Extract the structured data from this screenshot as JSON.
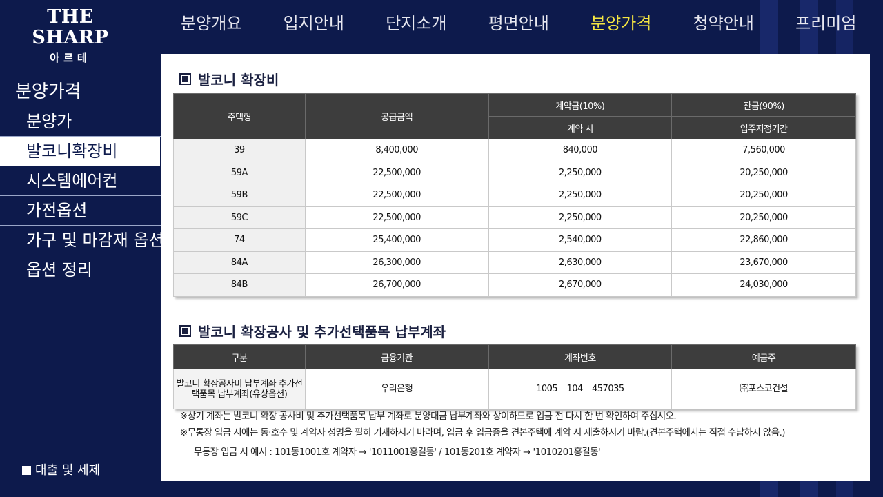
{
  "logo": {
    "main": "THE SHARP",
    "sub": "아르테"
  },
  "nav": [
    "분양개요",
    "입지안내",
    "단지소개",
    "평면안내",
    "분양가격",
    "청약안내",
    "프리미엄"
  ],
  "sidebar": {
    "title": "분양가격",
    "items": [
      "분양가",
      "발코니확장비",
      "시스템에어컨",
      "가전옵션",
      "가구 및 마감재 옵션",
      "옵션 정리"
    ],
    "footer": "대출 및 세제"
  },
  "balcony": {
    "title": "발코니 확장비",
    "headers": {
      "type": "주택형",
      "supply": "공급금액",
      "deposit": "계약금(10%)",
      "deposit_sub": "계약 시",
      "balance": "잔금(90%)",
      "balance_sub": "입주지정기간"
    },
    "rows": [
      [
        "39",
        "8,400,000",
        "840,000",
        "7,560,000"
      ],
      [
        "59A",
        "22,500,000",
        "2,250,000",
        "20,250,000"
      ],
      [
        "59B",
        "22,500,000",
        "2,250,000",
        "20,250,000"
      ],
      [
        "59C",
        "22,500,000",
        "2,250,000",
        "20,250,000"
      ],
      [
        "74",
        "25,400,000",
        "2,540,000",
        "22,860,000"
      ],
      [
        "84A",
        "26,300,000",
        "2,630,000",
        "23,670,000"
      ],
      [
        "84B",
        "26,700,000",
        "2,670,000",
        "24,030,000"
      ]
    ]
  },
  "account": {
    "title": "발코니 확장공사 및 추가선택품목 납부계좌",
    "headers": [
      "구분",
      "금융기관",
      "계좌번호",
      "예금주"
    ],
    "row": {
      "category": "발코니 확장공사비 납부계좌 추가선택품목 납부계좌(유상옵션)",
      "bank": "우리은행",
      "number": "1005 – 104 – 457035",
      "holder": "㈜포스코건설"
    }
  },
  "notes": {
    "n1": "※상기 계좌는 발코니 확장 공사비 및 추가선택품목 납부 계좌로 분양대금 납부계좌와 상이하므로 입금 전 다시 한 번 확인하여 주십시오.",
    "n2": "※무통장 입금 시에는 동·호수 및 계약자 성명을 필히 기재하시기 바라며, 입금 후 입금증을 견본주택에 계약 시 제출하시기 바람.(견본주택에서는 직접 수납하지 않음.)",
    "n3": "무통장 입금 시 예시 : 101동1001호 계약자 → '1011001홍길동' / 101동201호 계약자 → '1010201홍길동'"
  }
}
